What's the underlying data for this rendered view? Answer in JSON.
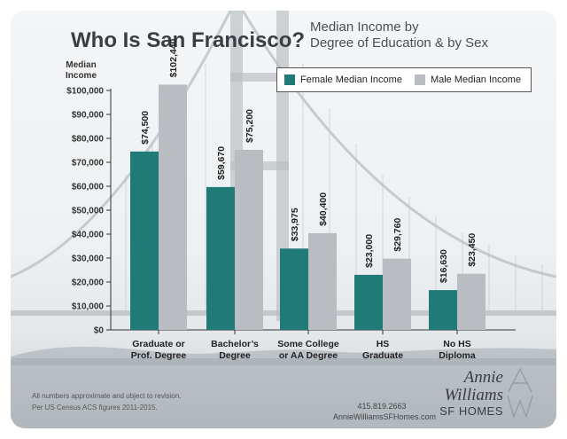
{
  "header": {
    "title": "Who Is San Francisco?",
    "subtitle_line1": "Median Income by",
    "subtitle_line2": "Degree of Education & by Sex"
  },
  "axis": {
    "ylabel_line1": "Median",
    "ylabel_line2": "Income"
  },
  "colors": {
    "female": "#207a78",
    "male": "#b9bcc0"
  },
  "chart_data": {
    "type": "bar",
    "title": "Median Income by Degree of Education & by Sex",
    "ylabel": "Median Income",
    "ylim": [
      0,
      100000
    ],
    "yticks": [
      0,
      10000,
      20000,
      30000,
      40000,
      50000,
      60000,
      70000,
      80000,
      90000,
      100000
    ],
    "ytick_labels": [
      "$0",
      "$10,000",
      "$20,000",
      "$30,000",
      "$40,000",
      "$50,000",
      "$60,000",
      "$70,000",
      "$80,000",
      "$90,000",
      "$100,000"
    ],
    "categories": [
      [
        "Graduate or",
        "Prof. Degree"
      ],
      [
        "Bachelor’s",
        "Degree"
      ],
      [
        "Some College",
        "or AA Degree"
      ],
      [
        "HS",
        "Graduate"
      ],
      [
        "No HS",
        "Diploma"
      ]
    ],
    "series": [
      {
        "name": "Female Median Income",
        "values": [
          74500,
          59670,
          33975,
          23000,
          16630
        ],
        "labels": [
          "$74,500",
          "$59,670",
          "$33,975",
          "$23,000",
          "$16,630"
        ]
      },
      {
        "name": "Male Median Income",
        "values": [
          102440,
          75200,
          40400,
          29760,
          23450
        ],
        "labels": [
          "$102,440",
          "$75,200",
          "$40,400",
          "$29,760",
          "$23,450"
        ]
      }
    ],
    "grid": false,
    "legend": "top-right"
  },
  "footer": {
    "note_line1": "All numbers approximate and ubject to revision.",
    "note_line2": "Per US Census ACS figures 2011-2015.",
    "phone": "415.819.2663",
    "website": "AnnieWilliamsSFHomes.com",
    "brand_line1": "Annie",
    "brand_line2": "Williams",
    "brand_line3": "SF HOMES"
  }
}
